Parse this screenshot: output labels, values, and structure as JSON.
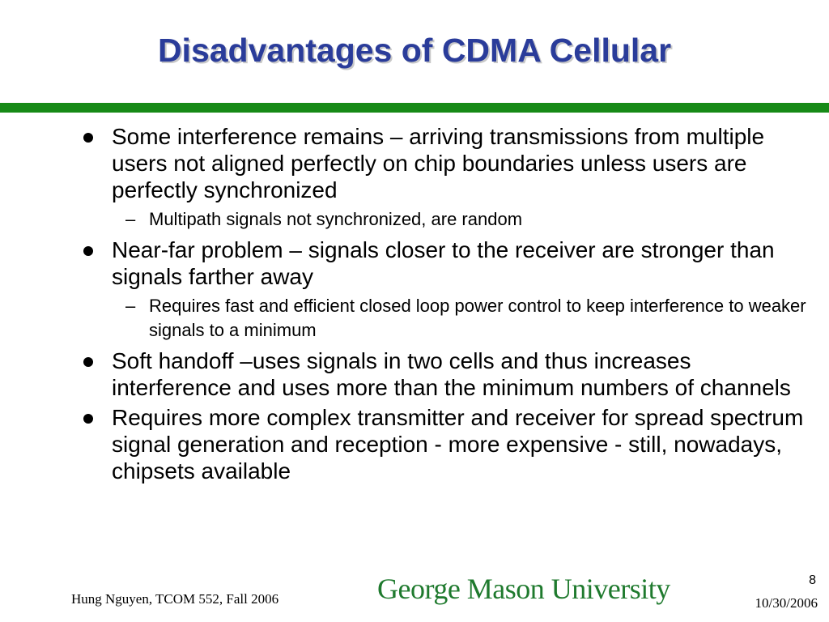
{
  "slide": {
    "title": "Disadvantages of CDMA Cellular",
    "items": [
      {
        "text": "Some interference remains – arriving transmissions from multiple users not aligned perfectly on chip boundaries unless users are perfectly synchronized",
        "sub": "Multipath signals not synchronized, are random"
      },
      {
        "text": "Near-far problem – signals closer to the receiver are stronger than signals farther away",
        "sub": "Requires fast and efficient closed loop power control to keep interference to weaker signals to a minimum"
      },
      {
        "text": "Soft handoff –uses signals in two cells and thus increases interference and uses more than the minimum numbers of channels"
      },
      {
        "text": "Requires more complex transmitter and receiver for spread spectrum signal generation and reception - more expensive - still, nowadays, chipsets available"
      }
    ]
  },
  "footer": {
    "author": "Hung Nguyen, TCOM 552, Fall 2006",
    "logo": "George Mason University",
    "page": "8",
    "date": "10/30/2006"
  },
  "colors": {
    "title": "#2a3c9a",
    "rule": "#178a17",
    "logo": "#1f7a2e"
  }
}
